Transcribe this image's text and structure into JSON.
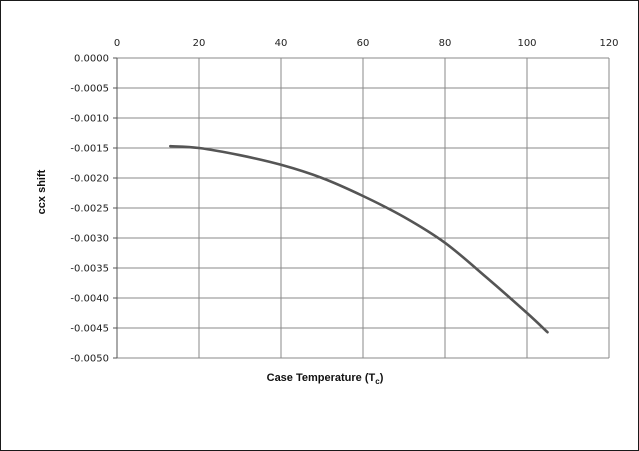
{
  "chart_data": {
    "type": "line",
    "title": "",
    "xlabel": "Case Temperature (T",
    "xlabel_sub": "c",
    "xlabel_close": ")",
    "ylabel": "ccx shift",
    "xlim": [
      0,
      120
    ],
    "ylim": [
      -0.005,
      0.0
    ],
    "x_ticks": [
      0,
      20,
      40,
      60,
      80,
      100,
      120
    ],
    "x_tick_labels": [
      "0",
      "20",
      "40",
      "60",
      "80",
      "100",
      "120"
    ],
    "y_ticks": [
      0.0,
      -0.0005,
      -0.001,
      -0.0015,
      -0.002,
      -0.0025,
      -0.003,
      -0.0035,
      -0.004,
      -0.0045,
      -0.005
    ],
    "y_tick_labels": [
      "0.0000",
      "-0.0005",
      "-0.0010",
      "-0.0015",
      "-0.0020",
      "-0.0025",
      "-0.0030",
      "-0.0035",
      "-0.0040",
      "-0.0045",
      "-0.0050"
    ],
    "x_axis_position": "top",
    "grid": true,
    "legend": "none",
    "series": [
      {
        "color": "#555555",
        "x": [
          13,
          20,
          30,
          40,
          50,
          60,
          70,
          80,
          90,
          100,
          105
        ],
        "y": [
          -0.00147,
          -0.0015,
          -0.00162,
          -0.00178,
          -0.002,
          -0.0023,
          -0.00265,
          -0.00308,
          -0.00365,
          -0.00425,
          -0.00457
        ]
      }
    ]
  }
}
